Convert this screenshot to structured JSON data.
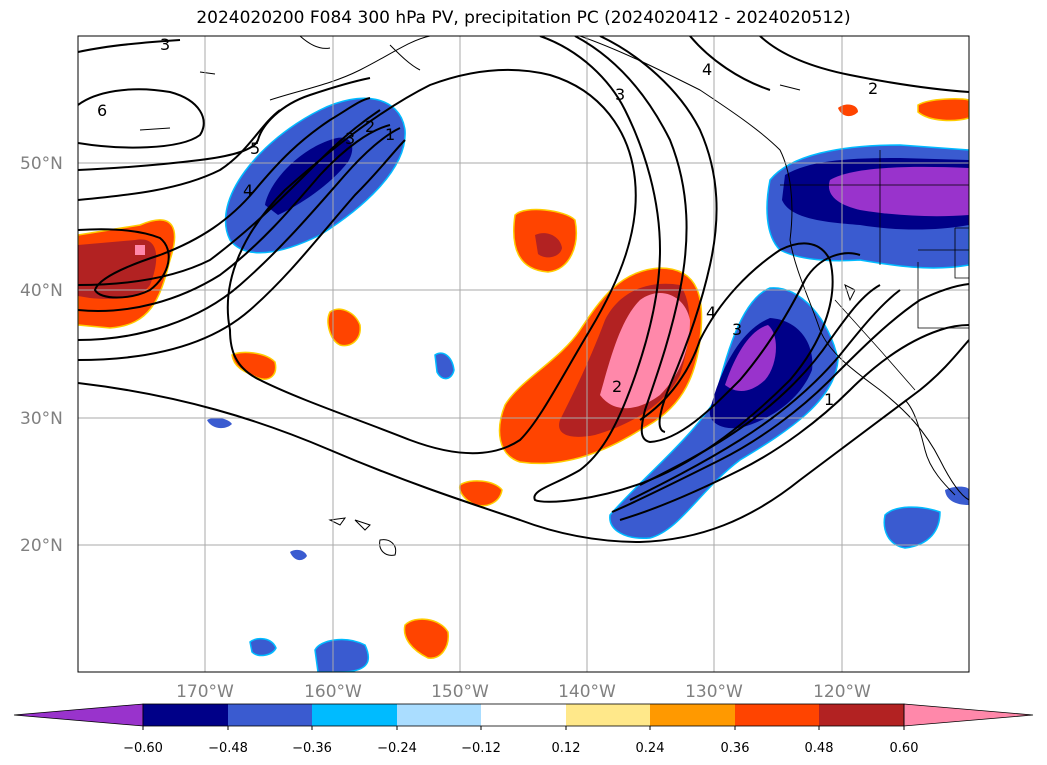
{
  "title": "2024020200 F084 300 hPa PV, precipitation PC (2024020412 - 2024020512)",
  "map": {
    "lat_ticks": [
      "50°N",
      "40°N",
      "30°N",
      "20°N"
    ],
    "lon_ticks": [
      "170°W",
      "160°W",
      "150°W",
      "140°W",
      "130°W",
      "120°W"
    ],
    "contour_labels": [
      "3",
      "6",
      "5",
      "4",
      "3",
      "2",
      "1",
      "3",
      "4",
      "2",
      "2",
      "4",
      "3",
      "1"
    ]
  },
  "colorbar": {
    "ticks": [
      "−0.60",
      "−0.48",
      "−0.36",
      "−0.24",
      "−0.12",
      "0.12",
      "0.24",
      "0.36",
      "0.48",
      "0.60"
    ],
    "colors": [
      "#9933cc",
      "#000088",
      "#3a5bd0",
      "#00bbff",
      "#aaddff",
      "#ffffff",
      "#ffe88a",
      "#ff9900",
      "#ff4400",
      "#b22222",
      "#ff88aa"
    ]
  },
  "legend_colors": {
    "blue_strong": "#000088",
    "blue_mid": "#3a5bd0",
    "purple": "#9933cc",
    "red_dark": "#b22222",
    "orange": "#ff4400",
    "pink": "#ff88aa"
  }
}
